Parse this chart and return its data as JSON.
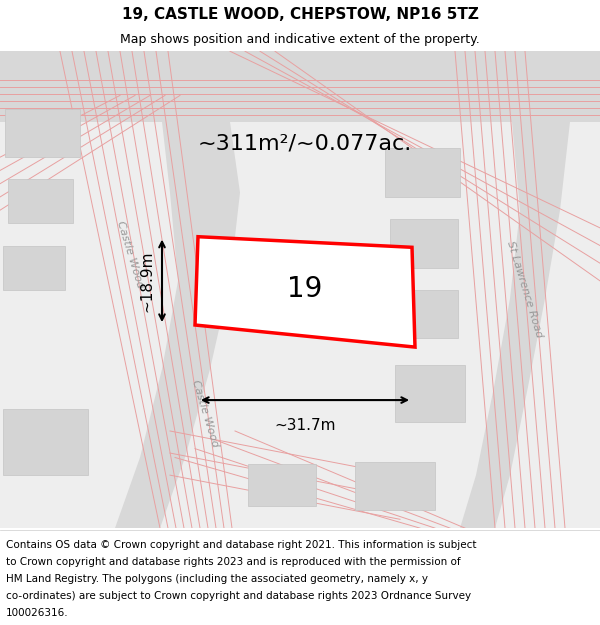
{
  "title": "19, CASTLE WOOD, CHEPSTOW, NP16 5TZ",
  "subtitle": "Map shows position and indicative extent of the property.",
  "footer_lines": [
    "Contains OS data © Crown copyright and database right 2021. This information is subject",
    "to Crown copyright and database rights 2023 and is reproduced with the permission of",
    "HM Land Registry. The polygons (including the associated geometry, namely x, y",
    "co-ordinates) are subject to Crown copyright and database rights 2023 Ordnance Survey",
    "100026316."
  ],
  "area_label": "~311m²/~0.077ac.",
  "dim_width": "~31.7m",
  "dim_height": "~18.9m",
  "plot_number": "19",
  "road_line_color": "#e8a0a0",
  "plot_edge_color": "#ff0000",
  "road_label_color": "#999999",
  "title_fontsize": 11,
  "subtitle_fontsize": 9,
  "footer_fontsize": 7.5,
  "area_fontsize": 16,
  "dim_fontsize": 11,
  "plot_num_fontsize": 20,
  "road_label_fontsize": 8
}
